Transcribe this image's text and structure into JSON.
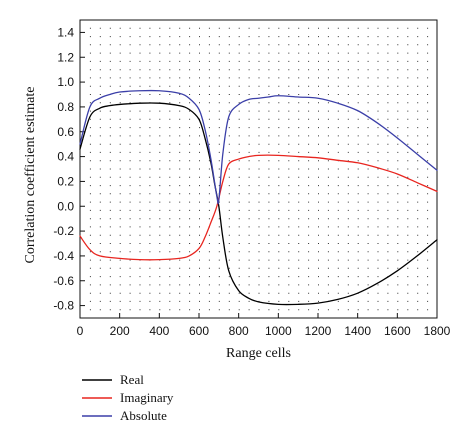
{
  "chart_data": {
    "type": "line",
    "title": "",
    "xlabel": "Range cells",
    "ylabel": "Correlation coefficient estimate",
    "xlim": [
      0,
      1800
    ],
    "ylim": [
      -0.9,
      1.5
    ],
    "xticks": [
      0,
      200,
      400,
      600,
      800,
      1000,
      1200,
      1400,
      1600,
      1800
    ],
    "xtick_labels": [
      "0",
      "200",
      "400",
      "600",
      "800",
      "1000",
      "1200",
      "1400",
      "1600",
      "1800"
    ],
    "yticks": [
      -0.8,
      -0.6,
      -0.4,
      -0.2,
      0.0,
      0.2,
      0.4,
      0.6,
      0.8,
      1.0,
      1.2,
      1.4
    ],
    "ytick_labels": [
      "-0.8",
      "-0.6",
      "-0.4",
      "-0.2",
      "0.0",
      "0.2",
      "0.4",
      "0.6",
      "0.8",
      "1.0",
      "1.2",
      "1.4"
    ],
    "grid": "dotted",
    "legend_position": "below-left",
    "series": [
      {
        "name": "Real",
        "color": "#000000",
        "x": [
          0,
          50,
          100,
          150,
          200,
          300,
          400,
          500,
          550,
          600,
          630,
          660,
          680,
          700,
          720,
          750,
          800,
          850,
          900,
          1000,
          1100,
          1200,
          1300,
          1400,
          1500,
          1600,
          1700,
          1800
        ],
        "y": [
          0.46,
          0.72,
          0.79,
          0.81,
          0.82,
          0.83,
          0.83,
          0.81,
          0.78,
          0.7,
          0.55,
          0.35,
          0.17,
          0.0,
          -0.25,
          -0.52,
          -0.68,
          -0.74,
          -0.77,
          -0.79,
          -0.79,
          -0.78,
          -0.75,
          -0.7,
          -0.62,
          -0.52,
          -0.4,
          -0.27
        ]
      },
      {
        "name": "Imaginary",
        "color": "#e8251f",
        "x": [
          0,
          50,
          100,
          200,
          300,
          400,
          500,
          550,
          600,
          630,
          660,
          690,
          720,
          750,
          800,
          850,
          900,
          1000,
          1100,
          1200,
          1300,
          1400,
          1500,
          1600,
          1700,
          1800
        ],
        "y": [
          -0.24,
          -0.35,
          -0.4,
          -0.42,
          -0.43,
          -0.43,
          -0.42,
          -0.4,
          -0.34,
          -0.25,
          -0.13,
          0.0,
          0.2,
          0.34,
          0.38,
          0.4,
          0.41,
          0.41,
          0.4,
          0.39,
          0.37,
          0.35,
          0.31,
          0.26,
          0.19,
          0.12
        ]
      },
      {
        "name": "Absolute",
        "color": "#3b3fa8",
        "x": [
          0,
          50,
          100,
          150,
          200,
          300,
          400,
          500,
          550,
          600,
          630,
          660,
          690,
          700,
          720,
          750,
          800,
          850,
          900,
          950,
          1000,
          1100,
          1200,
          1300,
          1400,
          1500,
          1600,
          1700,
          1800
        ],
        "y": [
          0.5,
          0.8,
          0.87,
          0.9,
          0.92,
          0.93,
          0.93,
          0.91,
          0.87,
          0.78,
          0.62,
          0.38,
          0.08,
          0.05,
          0.42,
          0.72,
          0.82,
          0.86,
          0.87,
          0.88,
          0.89,
          0.88,
          0.87,
          0.83,
          0.77,
          0.67,
          0.55,
          0.42,
          0.29
        ]
      }
    ]
  }
}
